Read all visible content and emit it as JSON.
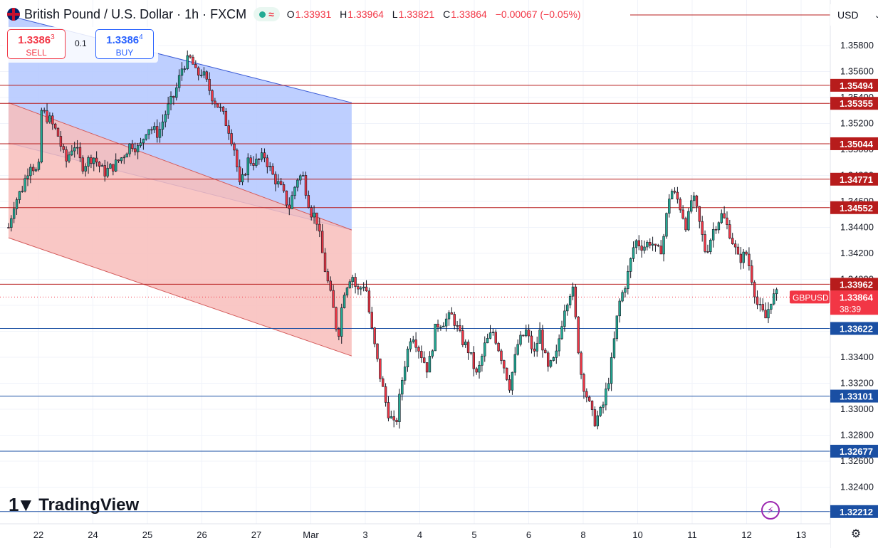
{
  "header": {
    "symbol": "British Pound / U.S. Dollar · 1h · FXCM",
    "ohlc": [
      {
        "k": "O",
        "v": "1.33931"
      },
      {
        "k": "H",
        "v": "1.33964"
      },
      {
        "k": "L",
        "v": "1.33821"
      },
      {
        "k": "C",
        "v": "1.33864"
      },
      {
        "k": "",
        "v": "−0.00067 (−0.05%)"
      }
    ]
  },
  "trade": {
    "sell_price": "1.3386",
    "sell_price_sup": "3",
    "sell_label": "SELL",
    "qty": "0.1",
    "buy_price": "1.3386",
    "buy_price_sup": "4",
    "buy_label": "BUY"
  },
  "currency": "USD",
  "branding": {
    "logo_text": "TradingView"
  },
  "icons": [
    "flag-icon",
    "market-open-icon",
    "chevron-down-icon",
    "tradingview-logo-icon",
    "bolt-icon",
    "gear-icon"
  ],
  "colors": {
    "up": "#22ab94",
    "down": "#f23645",
    "candle_body": "#131722",
    "resistance": "#b71c1c",
    "support": "#1a4fa3",
    "channel_blue": "#b3c7ff",
    "channel_red": "#f8bdbb"
  },
  "chart_data": {
    "type": "candlestick",
    "title": "British Pound / U.S. Dollar · 1h · FXCM",
    "ylim": [
      1.3221,
      1.361
    ],
    "y_ticks": [
      1.358,
      1.356,
      1.354,
      1.352,
      1.35,
      1.348,
      1.346,
      1.344,
      1.342,
      1.34,
      1.338,
      1.336,
      1.334,
      1.332,
      1.33,
      1.328,
      1.326,
      1.324
    ],
    "y_tick_labels": [
      "1.35800",
      "1.35600",
      "1.35400",
      "1.35200",
      "1.35000",
      "1.34800",
      "1.34600",
      "1.34400",
      "1.34200",
      "1.34000",
      "1.33800",
      "1.33600",
      "1.33400",
      "1.33200",
      "1.33000",
      "1.32800",
      "1.32600",
      "1.32400"
    ],
    "x_ticks": [
      {
        "day": 0,
        "label": "22"
      },
      {
        "day": 1,
        "label": "24"
      },
      {
        "day": 2,
        "label": "25"
      },
      {
        "day": 3,
        "label": "26"
      },
      {
        "day": 4,
        "label": "27"
      },
      {
        "day": 5,
        "label": "Mar"
      },
      {
        "day": 6,
        "label": "3"
      },
      {
        "day": 7,
        "label": "4"
      },
      {
        "day": 8,
        "label": "5"
      },
      {
        "day": 9,
        "label": "6"
      },
      {
        "day": 10,
        "label": "8"
      },
      {
        "day": 11,
        "label": "10"
      },
      {
        "day": 12,
        "label": "11"
      },
      {
        "day": 13,
        "label": "12"
      },
      {
        "day": 14,
        "label": "13"
      }
    ],
    "resistance_levels": [
      {
        "value": 1.35494,
        "label": "1.35494"
      },
      {
        "value": 1.35355,
        "label": "1.35355"
      },
      {
        "value": 1.35044,
        "label": "1.35044"
      },
      {
        "value": 1.34771,
        "label": "1.34771"
      },
      {
        "value": 1.34552,
        "label": "1.34552"
      },
      {
        "value": 1.33962,
        "label": "1.33962"
      }
    ],
    "support_levels": [
      {
        "value": 1.33622,
        "label": "1.33622"
      },
      {
        "value": 1.33101,
        "label": "1.33101"
      },
      {
        "value": 1.32677,
        "label": "1.32677"
      },
      {
        "value": 1.32212,
        "label": "1.32212"
      }
    ],
    "current_price": {
      "value": 1.33864,
      "symbol": "GBPUSD",
      "price_label": "1.33864",
      "countdown": "38:39"
    },
    "channel_upper": {
      "start": [
        -0.55,
        1.3603
      ],
      "end": [
        5.75,
        1.3536
      ],
      "edge_bottom": 1.3438
    },
    "channel_lower": {
      "start": [
        -0.55,
        1.3536
      ],
      "end": [
        5.75,
        1.3438
      ],
      "edge_bottom": 1.3341,
      "bottom_start": 1.3432
    },
    "candles_path": [
      [
        -0.55,
        1.344
      ],
      [
        -0.45,
        1.3458
      ],
      [
        -0.3,
        1.347
      ],
      [
        -0.15,
        1.349
      ],
      [
        0.0,
        1.348
      ],
      [
        0.05,
        1.353
      ],
      [
        0.2,
        1.3523
      ],
      [
        0.35,
        1.3512
      ],
      [
        0.5,
        1.349
      ],
      [
        0.65,
        1.3505
      ],
      [
        0.8,
        1.3487
      ],
      [
        1.0,
        1.3495
      ],
      [
        1.2,
        1.3482
      ],
      [
        1.4,
        1.3488
      ],
      [
        1.55,
        1.3495
      ],
      [
        1.7,
        1.3505
      ],
      [
        1.85,
        1.35
      ],
      [
        2.0,
        1.3518
      ],
      [
        2.2,
        1.3512
      ],
      [
        2.35,
        1.353
      ],
      [
        2.5,
        1.3542
      ],
      [
        2.65,
        1.3565
      ],
      [
        2.8,
        1.357
      ],
      [
        2.9,
        1.3557
      ],
      [
        3.0,
        1.356
      ],
      [
        3.2,
        1.354
      ],
      [
        3.35,
        1.353
      ],
      [
        3.5,
        1.3515
      ],
      [
        3.6,
        1.35
      ],
      [
        3.7,
        1.347
      ],
      [
        3.85,
        1.3492
      ],
      [
        4.0,
        1.349
      ],
      [
        4.15,
        1.3495
      ],
      [
        4.3,
        1.348
      ],
      [
        4.45,
        1.347
      ],
      [
        4.6,
        1.3455
      ],
      [
        4.75,
        1.3478
      ],
      [
        4.85,
        1.348
      ],
      [
        5.0,
        1.3452
      ],
      [
        5.1,
        1.3448
      ],
      [
        5.25,
        1.341
      ],
      [
        5.4,
        1.338
      ],
      [
        5.5,
        1.3355
      ],
      [
        5.6,
        1.339
      ],
      [
        5.75,
        1.3405
      ],
      [
        5.85,
        1.339
      ],
      [
        6.0,
        1.3398
      ],
      [
        6.1,
        1.3365
      ],
      [
        6.25,
        1.333
      ],
      [
        6.4,
        1.33
      ],
      [
        6.55,
        1.3285
      ],
      [
        6.7,
        1.333
      ],
      [
        6.85,
        1.336
      ],
      [
        7.0,
        1.3345
      ],
      [
        7.15,
        1.333
      ],
      [
        7.3,
        1.3365
      ],
      [
        7.45,
        1.3368
      ],
      [
        7.6,
        1.3372
      ],
      [
        7.75,
        1.3355
      ],
      [
        7.9,
        1.3345
      ],
      [
        8.05,
        1.3325
      ],
      [
        8.2,
        1.335
      ],
      [
        8.35,
        1.336
      ],
      [
        8.5,
        1.334
      ],
      [
        8.65,
        1.3318
      ],
      [
        8.8,
        1.335
      ],
      [
        8.95,
        1.336
      ],
      [
        9.1,
        1.3342
      ],
      [
        9.2,
        1.336
      ],
      [
        9.35,
        1.333
      ],
      [
        9.5,
        1.334
      ],
      [
        9.65,
        1.3378
      ],
      [
        9.8,
        1.3395
      ],
      [
        9.95,
        1.333
      ],
      [
        10.0,
        1.332
      ],
      [
        10.2,
        1.329
      ],
      [
        10.35,
        1.33
      ],
      [
        10.5,
        1.333
      ],
      [
        10.65,
        1.338
      ],
      [
        10.8,
        1.34
      ],
      [
        10.95,
        1.343
      ],
      [
        11.1,
        1.3425
      ],
      [
        11.25,
        1.343
      ],
      [
        11.35,
        1.342
      ],
      [
        11.45,
        1.3425
      ],
      [
        11.6,
        1.347
      ],
      [
        11.75,
        1.346
      ],
      [
        11.9,
        1.344
      ],
      [
        12.0,
        1.3465
      ],
      [
        12.1,
        1.345
      ],
      [
        12.25,
        1.342
      ],
      [
        12.4,
        1.344
      ],
      [
        12.55,
        1.345
      ],
      [
        12.7,
        1.3435
      ],
      [
        12.85,
        1.3415
      ],
      [
        13.0,
        1.342
      ],
      [
        13.1,
        1.34
      ],
      [
        13.2,
        1.338
      ],
      [
        13.35,
        1.337
      ],
      [
        13.45,
        1.3385
      ],
      [
        13.55,
        1.3388
      ]
    ]
  }
}
